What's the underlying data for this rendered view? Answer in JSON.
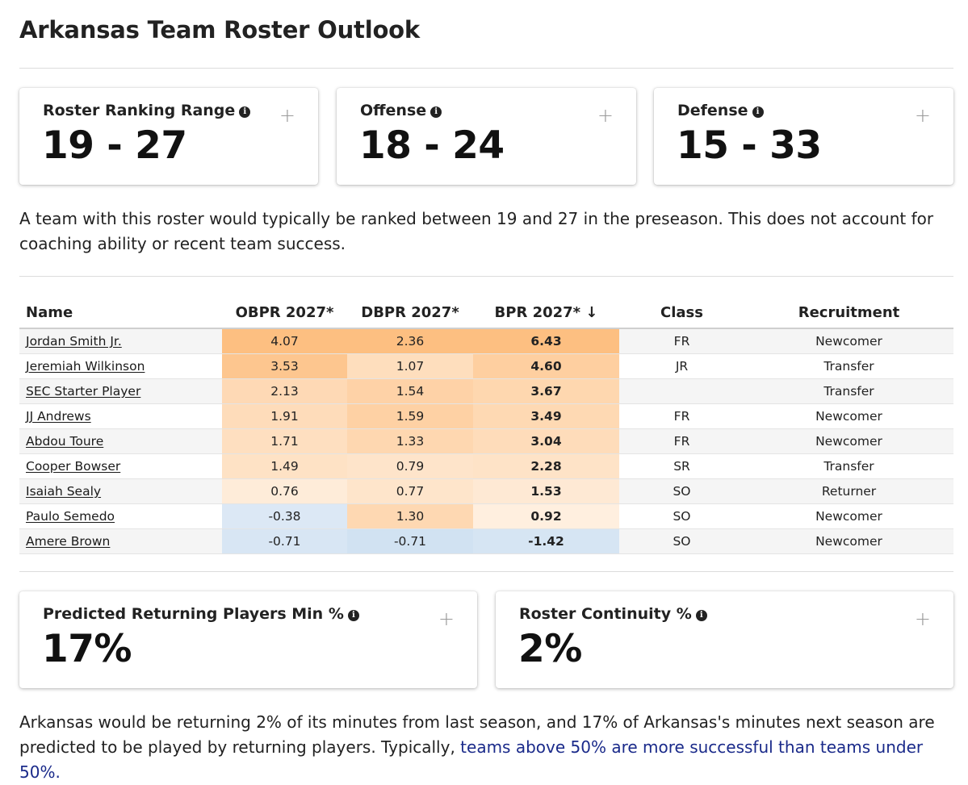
{
  "page": {
    "title": "Arkansas Team Roster Outlook"
  },
  "ranking_cards": [
    {
      "title": "Roster Ranking Range",
      "value": "19 - 27",
      "info_icon": "info-icon",
      "expand_icon": "plus-icon"
    },
    {
      "title": "Offense",
      "value": "18 - 24",
      "info_icon": "info-icon",
      "expand_icon": "plus-icon"
    },
    {
      "title": "Defense",
      "value": "15 - 33",
      "info_icon": "info-icon",
      "expand_icon": "plus-icon"
    }
  ],
  "ranking_description": "A team with this roster would typically be ranked between 19 and 27 in the preseason. This does not account for coaching ability or recent team success.",
  "table": {
    "columns": [
      "Name",
      "OBPR 2027*",
      "DBPR 2027*",
      "BPR 2027* ↓",
      "Class",
      "Recruitment"
    ],
    "rows": [
      {
        "name": "Jordan Smith Jr.",
        "obpr": "4.07",
        "dbpr": "2.36",
        "bpr": "6.43",
        "class": "FR",
        "recruitment": "Newcomer"
      },
      {
        "name": "Jeremiah Wilkinson",
        "obpr": "3.53",
        "dbpr": "1.07",
        "bpr": "4.60",
        "class": "JR",
        "recruitment": "Transfer"
      },
      {
        "name": "SEC Starter Player",
        "obpr": "2.13",
        "dbpr": "1.54",
        "bpr": "3.67",
        "class": "",
        "recruitment": "Transfer"
      },
      {
        "name": "JJ Andrews",
        "obpr": "1.91",
        "dbpr": "1.59",
        "bpr": "3.49",
        "class": "FR",
        "recruitment": "Newcomer"
      },
      {
        "name": "Abdou Toure",
        "obpr": "1.71",
        "dbpr": "1.33",
        "bpr": "3.04",
        "class": "FR",
        "recruitment": "Newcomer"
      },
      {
        "name": "Cooper Bowser",
        "obpr": "1.49",
        "dbpr": "0.79",
        "bpr": "2.28",
        "class": "SR",
        "recruitment": "Transfer"
      },
      {
        "name": "Isaiah Sealy",
        "obpr": "0.76",
        "dbpr": "0.77",
        "bpr": "1.53",
        "class": "SO",
        "recruitment": "Returner"
      },
      {
        "name": "Paulo Semedo",
        "obpr": "-0.38",
        "dbpr": "1.30",
        "bpr": "0.92",
        "class": "SO",
        "recruitment": "Newcomer"
      },
      {
        "name": "Amere Brown",
        "obpr": "-0.71",
        "dbpr": "-0.71",
        "bpr": "-1.42",
        "class": "SO",
        "recruitment": "Newcomer"
      }
    ],
    "heatmap_colors": {
      "positive": "#fdb873",
      "negative": "#a9c8e6"
    }
  },
  "continuity_cards": [
    {
      "title": "Predicted Returning Players Min %",
      "value": "17%",
      "info_icon": "info-icon",
      "expand_icon": "plus-icon"
    },
    {
      "title": "Roster Continuity %",
      "value": "2%",
      "info_icon": "info-icon",
      "expand_icon": "plus-icon"
    }
  ],
  "continuity_description": {
    "text": "Arkansas would be returning 2% of its minutes from last season, and 17% of Arkansas's minutes next season are predicted to be played by returning players. Typically, ",
    "link": "teams above 50% are more successful than teams under 50%."
  }
}
